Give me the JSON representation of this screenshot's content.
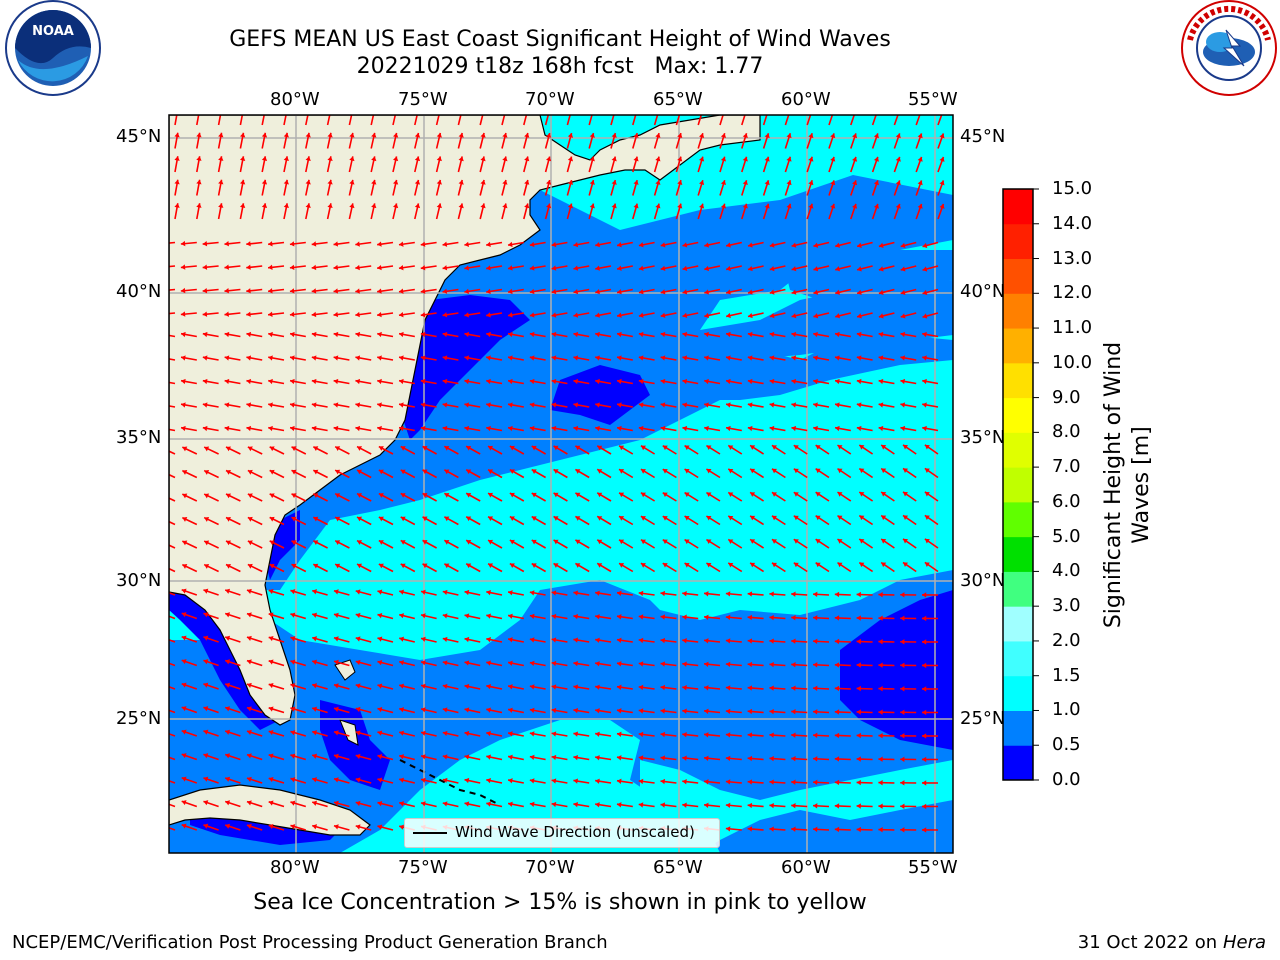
{
  "header": {
    "title_line1": "GEFS MEAN US East Coast Significant Height of Wind Waves",
    "title_line2": "20221029 t18z 168h fcst   Max: 1.77"
  },
  "logos": {
    "left": "noaa-logo",
    "right": "national-weather-service-logo"
  },
  "map": {
    "lon_ticks": [
      "80°W",
      "75°W",
      "70°W",
      "65°W",
      "60°W",
      "55°W"
    ],
    "lat_ticks": [
      "45°N",
      "40°N",
      "35°N",
      "30°N",
      "25°N"
    ],
    "legend_label": "Wind Wave Direction (unscaled)",
    "land_color": "#efefdc",
    "arrow_color": "#ff0000"
  },
  "colorbar": {
    "label": "Significant Height of Wind Waves [m]",
    "ticks": [
      "0.0",
      "0.5",
      "1.0",
      "1.5",
      "2.0",
      "3.0",
      "4.0",
      "5.0",
      "6.0",
      "7.0",
      "8.0",
      "9.0",
      "10.0",
      "11.0",
      "12.0",
      "13.0",
      "14.0",
      "15.0"
    ],
    "colors": [
      "#0000ff",
      "#0080ff",
      "#00ffff",
      "#40ffff",
      "#a0ffff",
      "#40ff80",
      "#00e000",
      "#60ff00",
      "#c0ff00",
      "#e0ff00",
      "#ffff00",
      "#ffe000",
      "#ffb000",
      "#ff8000",
      "#ff5000",
      "#ff2000",
      "#ff0000"
    ]
  },
  "caption": "Sea Ice Concentration > 15% is shown in pink to yellow",
  "footer": {
    "left": "NCEP/EMC/Verification Post Processing Product Generation Branch",
    "right_date": "31 Oct 2022 on ",
    "right_host": "Hera"
  }
}
